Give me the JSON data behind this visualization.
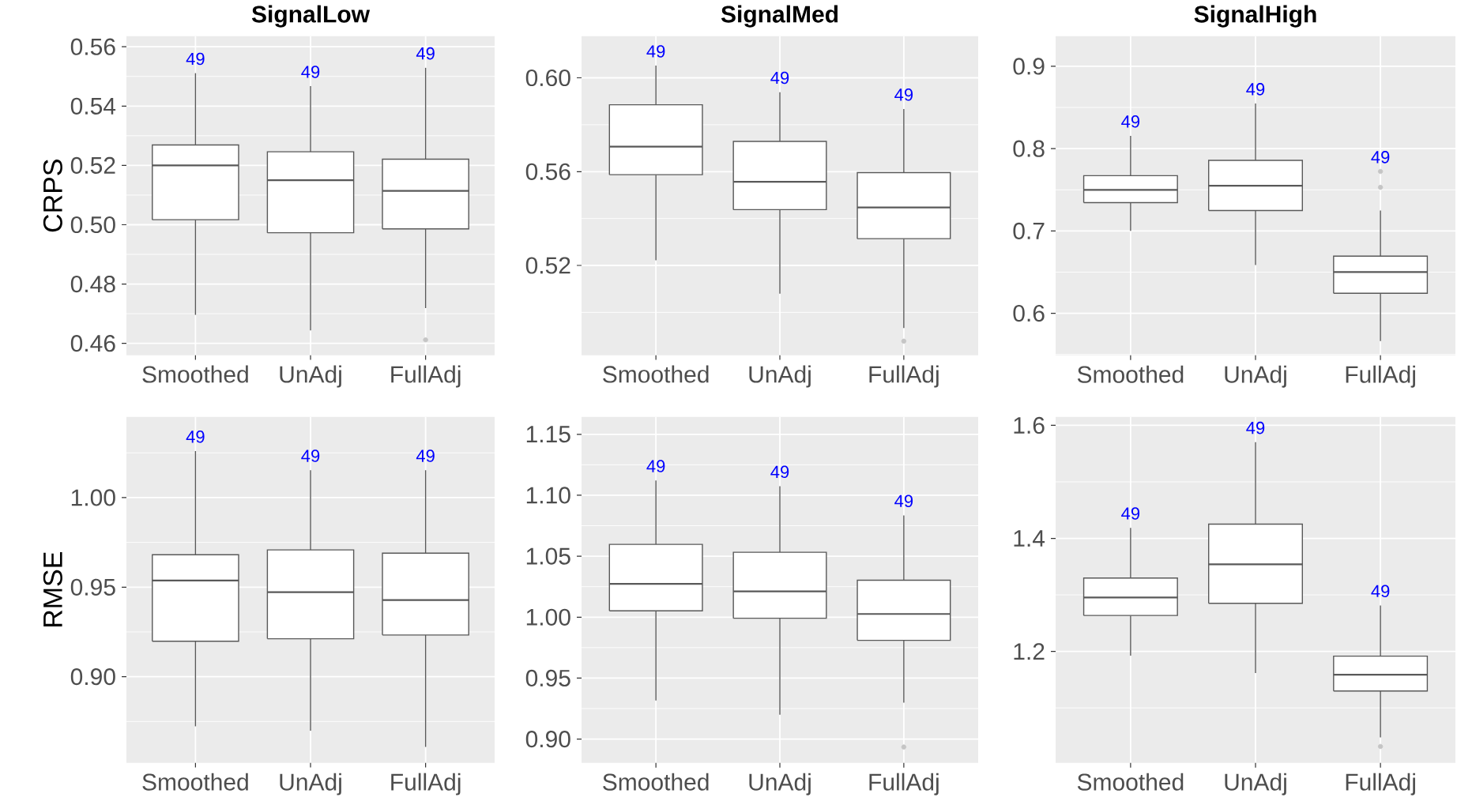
{
  "chart_data": [
    {
      "type": "box",
      "title": "SignalLow",
      "ylabel": "CRPS",
      "categories": [
        "Smoothed",
        "UnAdj",
        "FullAdj"
      ],
      "color": "#595959",
      "grid": true,
      "ylim": [
        0.456,
        0.5636
      ],
      "yticks": [
        0.46,
        0.48,
        {
          "value": 0.5,
          "label": "0.50"
        },
        0.52,
        0.54,
        0.56
      ],
      "boxes": [
        {
          "low": 0.4696,
          "q1": 0.5017,
          "median": 0.52,
          "q3": 0.5269,
          "high": 0.5511
        },
        {
          "low": 0.4644,
          "q1": 0.4973,
          "median": 0.515,
          "q3": 0.5246,
          "high": 0.5467
        },
        {
          "low": 0.4719,
          "q1": 0.4986,
          "median": 0.5114,
          "q3": 0.5221,
          "high": 0.5529,
          "outliers": [
            0.4612
          ]
        }
      ],
      "annotations": [
        "49",
        "49",
        "49"
      ]
    },
    {
      "type": "box",
      "title": "SignalMed",
      "categories": [
        "Smoothed",
        "UnAdj",
        "FullAdj"
      ],
      "color": "#595959",
      "grid": true,
      "ylim": [
        0.4817,
        0.6178
      ],
      "yticks": [
        0.52,
        0.56,
        {
          "value": 0.6,
          "label": "0.60"
        }
      ],
      "boxes": [
        {
          "low": 0.5222,
          "q1": 0.5587,
          "median": 0.5707,
          "q3": 0.5885,
          "high": 0.6052
        },
        {
          "low": 0.508,
          "q1": 0.5438,
          "median": 0.5557,
          "q3": 0.5729,
          "high": 0.5939
        },
        {
          "low": 0.4933,
          "q1": 0.5314,
          "median": 0.5447,
          "q3": 0.5596,
          "high": 0.5867,
          "outliers": [
            0.4877
          ]
        }
      ],
      "annotations": [
        "49",
        "49",
        "49"
      ]
    },
    {
      "type": "box",
      "title": "SignalHigh",
      "categories": [
        "Smoothed",
        "UnAdj",
        "FullAdj"
      ],
      "color": "#595959",
      "grid": true,
      "ylim": [
        0.549,
        0.9367
      ],
      "yticks": [
        0.6,
        0.7,
        0.8,
        0.9
      ],
      "boxes": [
        {
          "low": 0.7002,
          "q1": 0.7344,
          "median": 0.7498,
          "q3": 0.7672,
          "high": 0.8155
        },
        {
          "low": 0.6585,
          "q1": 0.7248,
          "median": 0.755,
          "q3": 0.7858,
          "high": 0.8548
        },
        {
          "low": 0.5663,
          "q1": 0.6243,
          "median": 0.65,
          "q3": 0.6694,
          "high": 0.7248,
          "outliers": [
            0.7723,
            0.753
          ]
        }
      ],
      "annotations": [
        "49",
        "49",
        "49"
      ]
    },
    {
      "type": "box",
      "ylabel": "RMSE",
      "categories": [
        "Smoothed",
        "UnAdj",
        "FullAdj"
      ],
      "color": "#595959",
      "grid": true,
      "ylim": [
        0.8519,
        1.0451
      ],
      "yticks": [
        {
          "value": 0.9,
          "label": "0.90"
        },
        0.95,
        {
          "value": 1.0,
          "label": "1.00"
        }
      ],
      "boxes": [
        {
          "low": 0.8723,
          "q1": 0.9198,
          "median": 0.9537,
          "q3": 0.9681,
          "high": 1.026
        },
        {
          "low": 0.8699,
          "q1": 0.9212,
          "median": 0.9472,
          "q3": 0.9708,
          "high": 1.0153
        },
        {
          "low": 0.8608,
          "q1": 0.9233,
          "median": 0.9428,
          "q3": 0.969,
          "high": 1.0153
        }
      ],
      "annotations": [
        "49",
        "49",
        "49"
      ]
    },
    {
      "type": "box",
      "categories": [
        "Smoothed",
        "UnAdj",
        "FullAdj"
      ],
      "color": "#595959",
      "grid": true,
      "ylim": [
        0.8805,
        1.1643
      ],
      "yticks": [
        {
          "value": 0.9,
          "label": "0.90"
        },
        0.95,
        {
          "value": 1.0,
          "label": "1.00"
        },
        1.05,
        {
          "value": 1.1,
          "label": "1.10"
        },
        1.15
      ],
      "boxes": [
        {
          "low": 0.9316,
          "q1": 1.0052,
          "median": 1.0273,
          "q3": 1.0597,
          "high": 1.1121
        },
        {
          "low": 0.92,
          "q1": 0.9991,
          "median": 1.0212,
          "q3": 1.0532,
          "high": 1.1074
        },
        {
          "low": 0.9298,
          "q1": 0.981,
          "median": 1.0026,
          "q3": 1.0303,
          "high": 1.0835,
          "outliers": [
            0.8935
          ]
        }
      ],
      "annotations": [
        "49",
        "49",
        "49"
      ]
    },
    {
      "type": "box",
      "categories": [
        "Smoothed",
        "UnAdj",
        "FullAdj"
      ],
      "color": "#595959",
      "grid": true,
      "ylim": [
        1.0028,
        1.615
      ],
      "yticks": [
        1.2,
        1.4,
        1.6
      ],
      "boxes": [
        {
          "low": 1.1925,
          "q1": 1.2636,
          "median": 1.2953,
          "q3": 1.3299,
          "high": 1.4187
        },
        {
          "low": 1.1617,
          "q1": 1.285,
          "median": 1.3542,
          "q3": 1.4252,
          "high": 1.5701
        },
        {
          "low": 1.0477,
          "q1": 1.13,
          "median": 1.1589,
          "q3": 1.1916,
          "high": 1.2813,
          "outliers": [
            1.0318
          ]
        }
      ],
      "annotations": [
        "49",
        "49",
        "49"
      ]
    }
  ]
}
